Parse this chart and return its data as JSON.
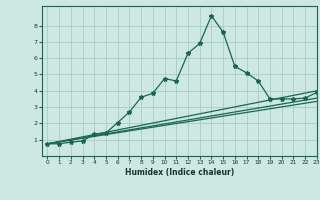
{
  "title": "",
  "xlabel": "Humidex (Indice chaleur)",
  "xlim": [
    -0.5,
    23
  ],
  "ylim": [
    0,
    9.2
  ],
  "xticks": [
    0,
    1,
    2,
    3,
    4,
    5,
    6,
    7,
    8,
    9,
    10,
    11,
    12,
    13,
    14,
    15,
    16,
    17,
    18,
    19,
    20,
    21,
    22,
    23
  ],
  "yticks": [
    1,
    2,
    3,
    4,
    5,
    6,
    7,
    8
  ],
  "background_color": "#cce8e0",
  "grid_color": "#aaccc4",
  "line_color": "#1a6655",
  "main_x": [
    0,
    1,
    2,
    3,
    4,
    5,
    6,
    7,
    8,
    9,
    10,
    11,
    12,
    13,
    14,
    15,
    16,
    17,
    18,
    19,
    20,
    21,
    22,
    23
  ],
  "main_y": [
    0.75,
    0.75,
    0.85,
    0.92,
    1.35,
    1.42,
    2.05,
    2.7,
    3.6,
    3.85,
    4.75,
    4.6,
    6.3,
    6.9,
    8.6,
    7.6,
    5.5,
    5.1,
    4.6,
    3.5,
    3.5,
    3.5,
    3.55,
    3.9
  ],
  "line1_x": [
    0,
    23
  ],
  "line1_y": [
    0.75,
    4.0
  ],
  "line2_x": [
    0,
    23
  ],
  "line2_y": [
    0.75,
    3.55
  ],
  "line3_x": [
    0,
    23
  ],
  "line3_y": [
    0.75,
    3.35
  ]
}
